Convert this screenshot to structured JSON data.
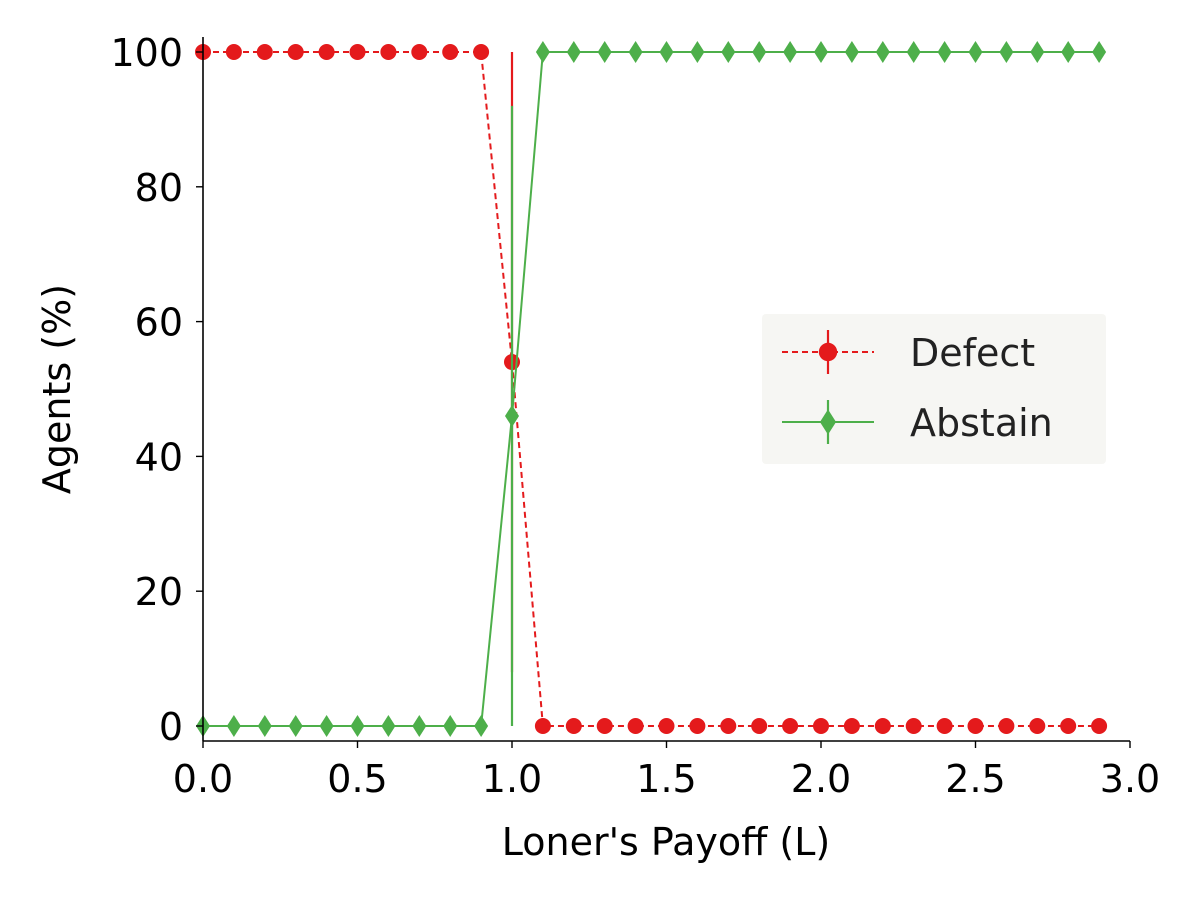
{
  "chart_data": {
    "type": "line",
    "title": "",
    "xlabel": "Loner's Payoff (L)",
    "ylabel": "Agents (%)",
    "xlim": [
      0.0,
      3.0
    ],
    "ylim": [
      0,
      100
    ],
    "xticks": [
      "0.0",
      "0.5",
      "1.0",
      "1.5",
      "2.0",
      "2.5",
      "3.0"
    ],
    "yticks": [
      "0",
      "20",
      "40",
      "60",
      "80",
      "100"
    ],
    "grid": false,
    "legend_position": "center-right",
    "x": [
      0.0,
      0.1,
      0.2,
      0.3,
      0.4,
      0.5,
      0.6,
      0.7,
      0.8,
      0.9,
      1.0,
      1.1,
      1.2,
      1.3,
      1.4,
      1.5,
      1.6,
      1.7,
      1.8,
      1.9,
      2.0,
      2.1,
      2.2,
      2.3,
      2.4,
      2.5,
      2.6,
      2.7,
      2.8,
      2.9
    ],
    "series": [
      {
        "name": "Defect",
        "color": "#e41a1c",
        "line_style": "dashed",
        "marker": "circle",
        "values": [
          100,
          100,
          100,
          100,
          100,
          100,
          100,
          100,
          100,
          100,
          54,
          0,
          0,
          0,
          0,
          0,
          0,
          0,
          0,
          0,
          0,
          0,
          0,
          0,
          0,
          0,
          0,
          0,
          0,
          0
        ],
        "errors": [
          0,
          0,
          0,
          0,
          0,
          0,
          0,
          0,
          0,
          0,
          46,
          0,
          0,
          0,
          0,
          0,
          0,
          0,
          0,
          0,
          0,
          0,
          0,
          0,
          0,
          0,
          0,
          0,
          0,
          0
        ]
      },
      {
        "name": "Abstain",
        "color": "#4daf4a",
        "line_style": "solid",
        "marker": "diamond",
        "values": [
          0,
          0,
          0,
          0,
          0,
          0,
          0,
          0,
          0,
          0,
          46,
          100,
          100,
          100,
          100,
          100,
          100,
          100,
          100,
          100,
          100,
          100,
          100,
          100,
          100,
          100,
          100,
          100,
          100,
          100
        ],
        "errors": [
          0,
          0,
          0,
          0,
          0,
          0,
          0,
          0,
          0,
          0,
          46,
          0,
          0,
          0,
          0,
          0,
          0,
          0,
          0,
          0,
          0,
          0,
          0,
          0,
          0,
          0,
          0,
          0,
          0,
          0
        ]
      }
    ]
  }
}
